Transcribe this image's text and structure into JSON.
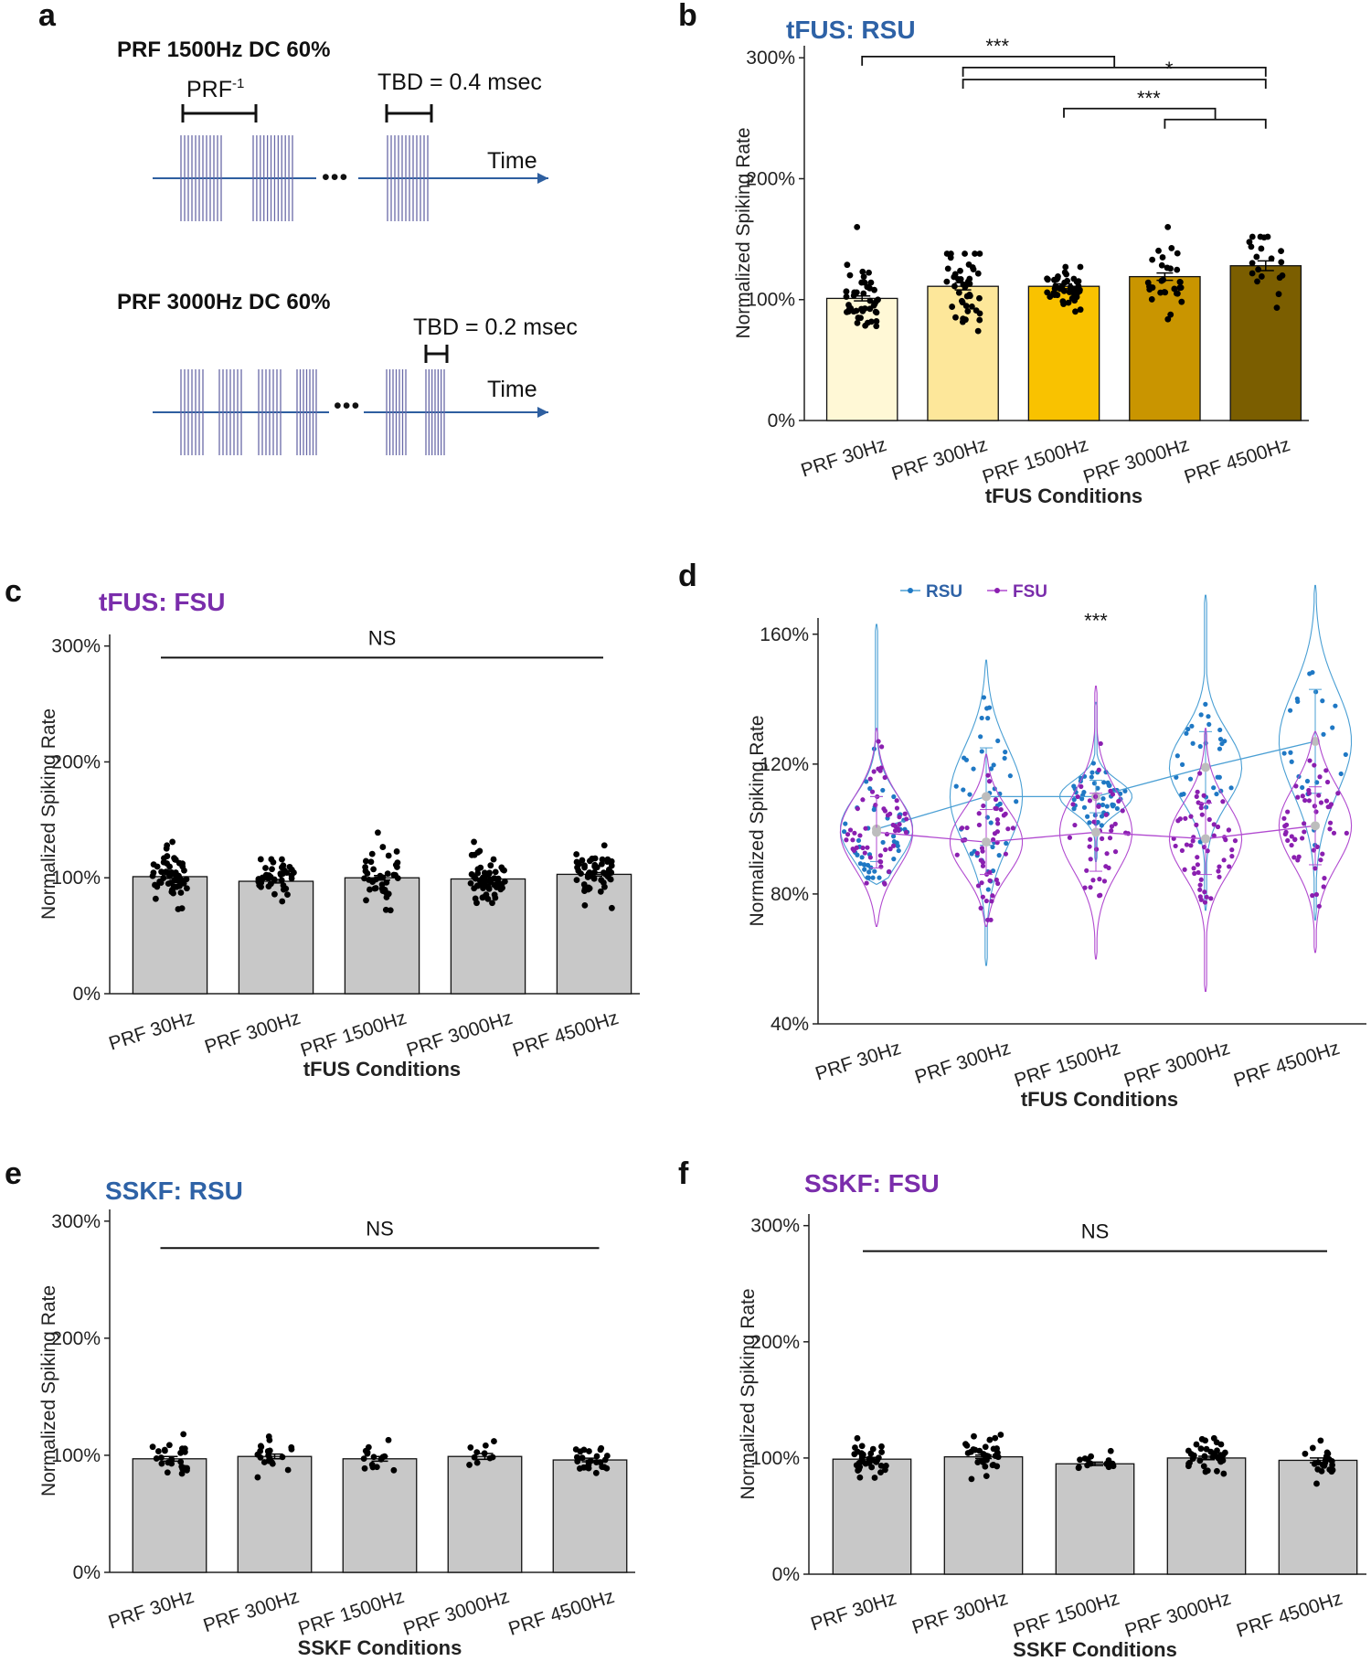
{
  "figure": {
    "panel_labels": [
      "a",
      "b",
      "c",
      "d",
      "e",
      "f"
    ],
    "colors": {
      "rsu": "#2e62a6",
      "fsu": "#7a2dab",
      "rsu_violin": "#4a9fd4",
      "fsu_violin": "#b14ad0",
      "axis": "#222222",
      "bar_gray": "#c8c8c8",
      "pulse": "#6a6aa8",
      "arrow": "#2e5fa0"
    }
  },
  "schematic": {
    "panel": "a",
    "upper": {
      "title": "PRF 1500Hz DC 60%",
      "prf_label": "PRF",
      "prf_exp": "-1",
      "tbd_label": "TBD = 0.4 msec",
      "time_label": "Time",
      "dots": "•••"
    },
    "lower": {
      "title": "PRF 3000Hz DC 60%",
      "tbd_label": "TBD = 0.2 msec",
      "time_label": "Time",
      "dots": "•••"
    }
  },
  "chart_data": [
    {
      "panel": "b",
      "type": "bar",
      "title": "tFUS: RSU",
      "title_color": "#2e62a6",
      "categories": [
        "PRF 30Hz",
        "PRF 300Hz",
        "PRF 1500Hz",
        "PRF 3000Hz",
        "PRF 4500Hz"
      ],
      "values": [
        101,
        111,
        111,
        119,
        128
      ],
      "sem": [
        2,
        3,
        2,
        3,
        4
      ],
      "bar_colors": [
        "#fff8d6",
        "#fde79a",
        "#f9c200",
        "#c99500",
        "#7b5e00"
      ],
      "point_counts": [
        45,
        42,
        48,
        30,
        20
      ],
      "point_spread": [
        12,
        18,
        9,
        14,
        15
      ],
      "point_max": [
        160,
        138,
        127,
        160,
        152
      ],
      "ylim": [
        0,
        310
      ],
      "yticks": [
        0,
        100,
        200,
        300
      ],
      "ytick_labels": [
        "0%",
        "100%",
        "200%",
        "300%"
      ],
      "ylabel": "Normalized Spiking Rate",
      "xlabel": "tFUS Conditions",
      "significance": [
        {
          "from": 0,
          "to_a": 1,
          "to_b": 4,
          "y": 301,
          "label": "***"
        },
        {
          "from": 1,
          "to_a": 4,
          "to_b": 4,
          "y": 282,
          "label": "*"
        },
        {
          "from": 2,
          "to_a": 3,
          "to_b": 4,
          "y": 258,
          "label": "***"
        }
      ]
    },
    {
      "panel": "c",
      "type": "bar",
      "title": "tFUS: FSU",
      "title_color": "#7a2dab",
      "categories": [
        "PRF 30Hz",
        "PRF 300Hz",
        "PRF 1500Hz",
        "PRF 3000Hz",
        "PRF 4500Hz"
      ],
      "values": [
        101,
        97,
        100,
        99,
        103
      ],
      "sem": [
        1.5,
        1.5,
        2,
        1.5,
        1.5
      ],
      "bar_colors": [
        "#c8c8c8",
        "#c8c8c8",
        "#c8c8c8",
        "#c8c8c8",
        "#c8c8c8"
      ],
      "point_counts": [
        55,
        45,
        40,
        58,
        52
      ],
      "point_spread": [
        11,
        9,
        11,
        11,
        10
      ],
      "point_max": [
        131,
        116,
        139,
        131,
        128
      ],
      "ylim": [
        0,
        310
      ],
      "yticks": [
        0,
        100,
        200,
        300
      ],
      "ytick_labels": [
        "0%",
        "100%",
        "200%",
        "300%"
      ],
      "ylabel": "Normalized Spiking Rate",
      "xlabel": "tFUS Conditions",
      "ns_label": "NS",
      "ns_y": 290
    },
    {
      "panel": "d",
      "type": "violin",
      "categories": [
        "PRF 30Hz",
        "PRF 300Hz",
        "PRF 1500Hz",
        "PRF 3000Hz",
        "PRF 4500Hz"
      ],
      "ylim": [
        40,
        165
      ],
      "yticks": [
        40,
        80,
        120,
        160
      ],
      "ytick_labels": [
        "40%",
        "80%",
        "120%",
        "160%"
      ],
      "ylabel": "Normalized Spiking Rate",
      "xlabel": "tFUS Conditions",
      "annotation": "***",
      "annotation_category": 2,
      "annotation_value": 162,
      "series": [
        {
          "name": "RSU",
          "color": "#4a9fd4",
          "dot_color": "#1f78c4",
          "means": [
            100,
            110,
            110,
            119,
            127
          ],
          "sd": [
            10,
            15,
            5,
            11,
            16
          ],
          "ranges": [
            [
              83,
              163
            ],
            [
              58,
              152
            ],
            [
              90,
              139
            ],
            [
              75,
              172
            ],
            [
              72,
              175
            ]
          ],
          "counts": [
            45,
            42,
            48,
            30,
            22
          ]
        },
        {
          "name": "FSU",
          "color": "#b14ad0",
          "dot_color": "#8a1fb0",
          "means": [
            99,
            96,
            99,
            97,
            101
          ],
          "sd": [
            11,
            10,
            12,
            11,
            12
          ],
          "ranges": [
            [
              70,
              131
            ],
            [
              70,
              123
            ],
            [
              60,
              144
            ],
            [
              50,
              131
            ],
            [
              62,
              130
            ]
          ],
          "counts": [
            55,
            45,
            40,
            58,
            52
          ]
        }
      ]
    },
    {
      "panel": "e",
      "type": "bar",
      "title": "SSKF: RSU",
      "title_color": "#2e62a6",
      "categories": [
        "PRF 30Hz",
        "PRF 300Hz",
        "PRF 1500Hz",
        "PRF 3000Hz",
        "PRF 4500Hz"
      ],
      "values": [
        97,
        99,
        97,
        99,
        96
      ],
      "sem": [
        2,
        2,
        2,
        2.5,
        1.5
      ],
      "bar_colors": [
        "#c8c8c8",
        "#c8c8c8",
        "#c8c8c8",
        "#c8c8c8",
        "#c8c8c8"
      ],
      "point_counts": [
        24,
        20,
        15,
        10,
        26
      ],
      "point_spread": [
        9,
        7,
        7,
        7,
        6
      ],
      "point_max": [
        118,
        116,
        113,
        112,
        106
      ],
      "ylim": [
        0,
        310
      ],
      "yticks": [
        0,
        100,
        200,
        300
      ],
      "ytick_labels": [
        "0%",
        "100%",
        "200%",
        "300%"
      ],
      "ylabel": "Normalized Spiking Rate",
      "xlabel": "SSKF Conditions",
      "ns_label": "NS",
      "ns_y": 277
    },
    {
      "panel": "f",
      "type": "bar",
      "title": "SSKF: FSU",
      "title_color": "#7a2dab",
      "categories": [
        "PRF 30Hz",
        "PRF 300Hz",
        "PRF 1500Hz",
        "PRF 3000Hz",
        "PRF 4500Hz"
      ],
      "values": [
        99,
        101,
        95,
        100,
        98
      ],
      "sem": [
        1.5,
        1.5,
        1.5,
        1.5,
        2
      ],
      "bar_colors": [
        "#c8c8c8",
        "#c8c8c8",
        "#c8c8c8",
        "#c8c8c8",
        "#c8c8c8"
      ],
      "point_counts": [
        35,
        32,
        14,
        34,
        22
      ],
      "point_spread": [
        8,
        9,
        5,
        8,
        8
      ],
      "point_max": [
        117,
        120,
        106,
        117,
        115
      ],
      "ylim": [
        0,
        310
      ],
      "yticks": [
        0,
        100,
        200,
        300
      ],
      "ytick_labels": [
        "0%",
        "100%",
        "200%",
        "300%"
      ],
      "ylabel": "Normalized Spiking Rate",
      "xlabel": "SSKF Conditions",
      "ns_label": "NS",
      "ns_y": 278
    }
  ]
}
